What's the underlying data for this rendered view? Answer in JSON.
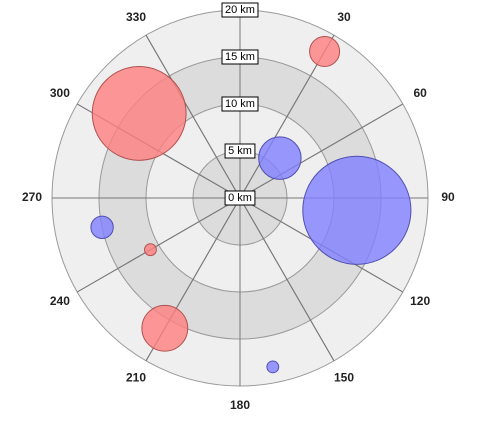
{
  "chart_data": {
    "type": "polar-bubble",
    "rlim": [
      0,
      20
    ],
    "rticks": [
      {
        "value": 0,
        "label": "0 km"
      },
      {
        "value": 5,
        "label": "5 km"
      },
      {
        "value": 10,
        "label": "10 km"
      },
      {
        "value": 15,
        "label": "15 km"
      },
      {
        "value": 20,
        "label": "20 km"
      }
    ],
    "thetaticks": [
      30,
      60,
      90,
      120,
      150,
      180,
      210,
      240,
      270,
      300,
      330
    ],
    "series": [
      {
        "color": "#ff8080",
        "theta": [
          30,
          310,
          240,
          210
        ],
        "r": [
          18,
          14,
          11,
          16
        ],
        "size": [
          9,
          88,
          1.4,
          21
        ]
      },
      {
        "color": "#8080ff",
        "theta": [
          45,
          96,
          258,
          169
        ],
        "r": [
          6,
          12.5,
          15,
          18.3
        ],
        "size": [
          18,
          117,
          5,
          1.4
        ]
      }
    ]
  }
}
